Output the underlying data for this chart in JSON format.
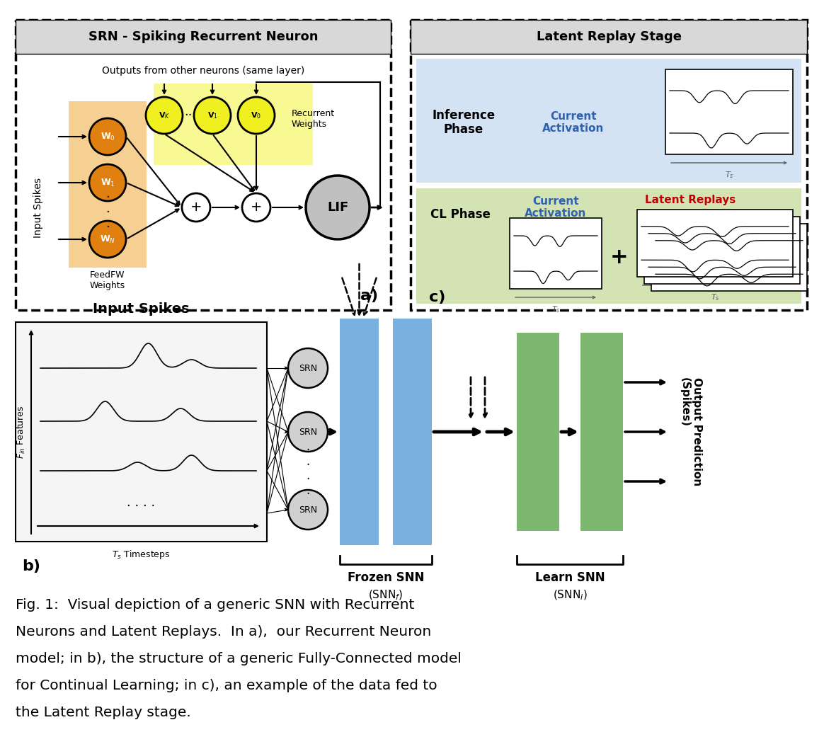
{
  "fig_width": 11.64,
  "fig_height": 10.58,
  "bg_color": "#ffffff",
  "panel_a_title": "SRN - Spiking Recurrent Neuron",
  "panel_a_subtitle": "Outputs from other neurons (same layer)",
  "panel_c_title": "Latent Replay Stage",
  "panel_b_title": "Input Spikes",
  "dark_orange": "#E08010",
  "yellow_node": "#F0F020",
  "orange_bg": "#F5C880",
  "yellow_bg": "#F8F880",
  "blue_col": "#7AB0E0",
  "blue_inf": "#C8DCF0",
  "green_col": "#7EB870",
  "green_cl": "#C8DCA0",
  "gray_title": "#D8D8D8",
  "lif_gray": "#C0C0C0",
  "srn_gray": "#D0D0D0",
  "caption_line1": "Fig. 1:  Visual depiction of a generic SNN with Recurrent",
  "caption_line2": "Neurons and Latent Replays.  In a),  our Recurrent Neuron",
  "caption_line3": "model; in b), the structure of a generic Fully-Connected model",
  "caption_line4": "for Continual Learning; in c), an example of the data fed to",
  "caption_line5": "the Latent Replay stage."
}
